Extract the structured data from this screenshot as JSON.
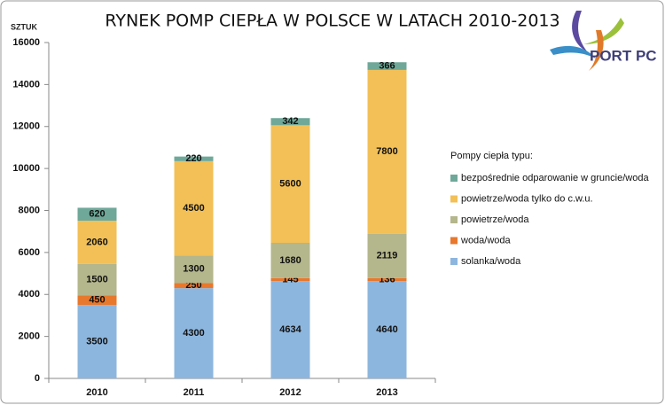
{
  "chart_data": {
    "type": "stacked_bar",
    "title": "RYNEK POMP CIEPŁA W POLSCE W LATACH 2010-2013",
    "y_label": "SZTUK",
    "legend_title": "Pompy ciepła typu:",
    "categories": [
      "2010",
      "2011",
      "2012",
      "2013"
    ],
    "series": [
      {
        "name": "solanka/woda",
        "color": "#8db6de",
        "values": [
          3500,
          4300,
          4634,
          4640
        ]
      },
      {
        "name": "woda/woda",
        "color": "#e8782c",
        "values": [
          450,
          250,
          145,
          136
        ]
      },
      {
        "name": "powietrze/woda",
        "color": "#b4b68c",
        "values": [
          1500,
          1300,
          1680,
          2119
        ]
      },
      {
        "name": "powietrze/woda tylko do c.w.u.",
        "color": "#f2c057",
        "values": [
          2060,
          4500,
          5600,
          7800
        ]
      },
      {
        "name": "bezpośrednie odparowanie w gruncie/woda",
        "color": "#6fa898",
        "values": [
          620,
          220,
          342,
          366
        ]
      }
    ],
    "ylim": [
      0,
      16000
    ],
    "yticks": [
      0,
      2000,
      4000,
      6000,
      8000,
      10000,
      12000,
      14000,
      16000
    ],
    "grid": false,
    "legend": "right"
  },
  "logo": {
    "text": "PORT PC"
  }
}
